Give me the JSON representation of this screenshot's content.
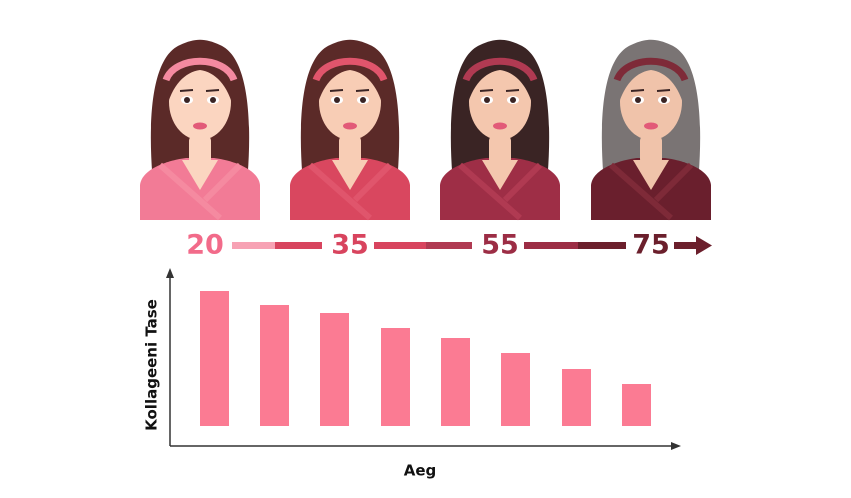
{
  "chart_data": {
    "type": "bar",
    "age_labels": [
      "20",
      "35",
      "55",
      "75"
    ],
    "y_label": "Kollageeni Tase",
    "x_label": "Aeg",
    "categories": [
      null,
      null,
      null,
      null,
      null,
      null,
      null,
      null
    ],
    "values": [
      135,
      121,
      113,
      98,
      88,
      73,
      57,
      42
    ],
    "color": "#fb7b93"
  }
}
